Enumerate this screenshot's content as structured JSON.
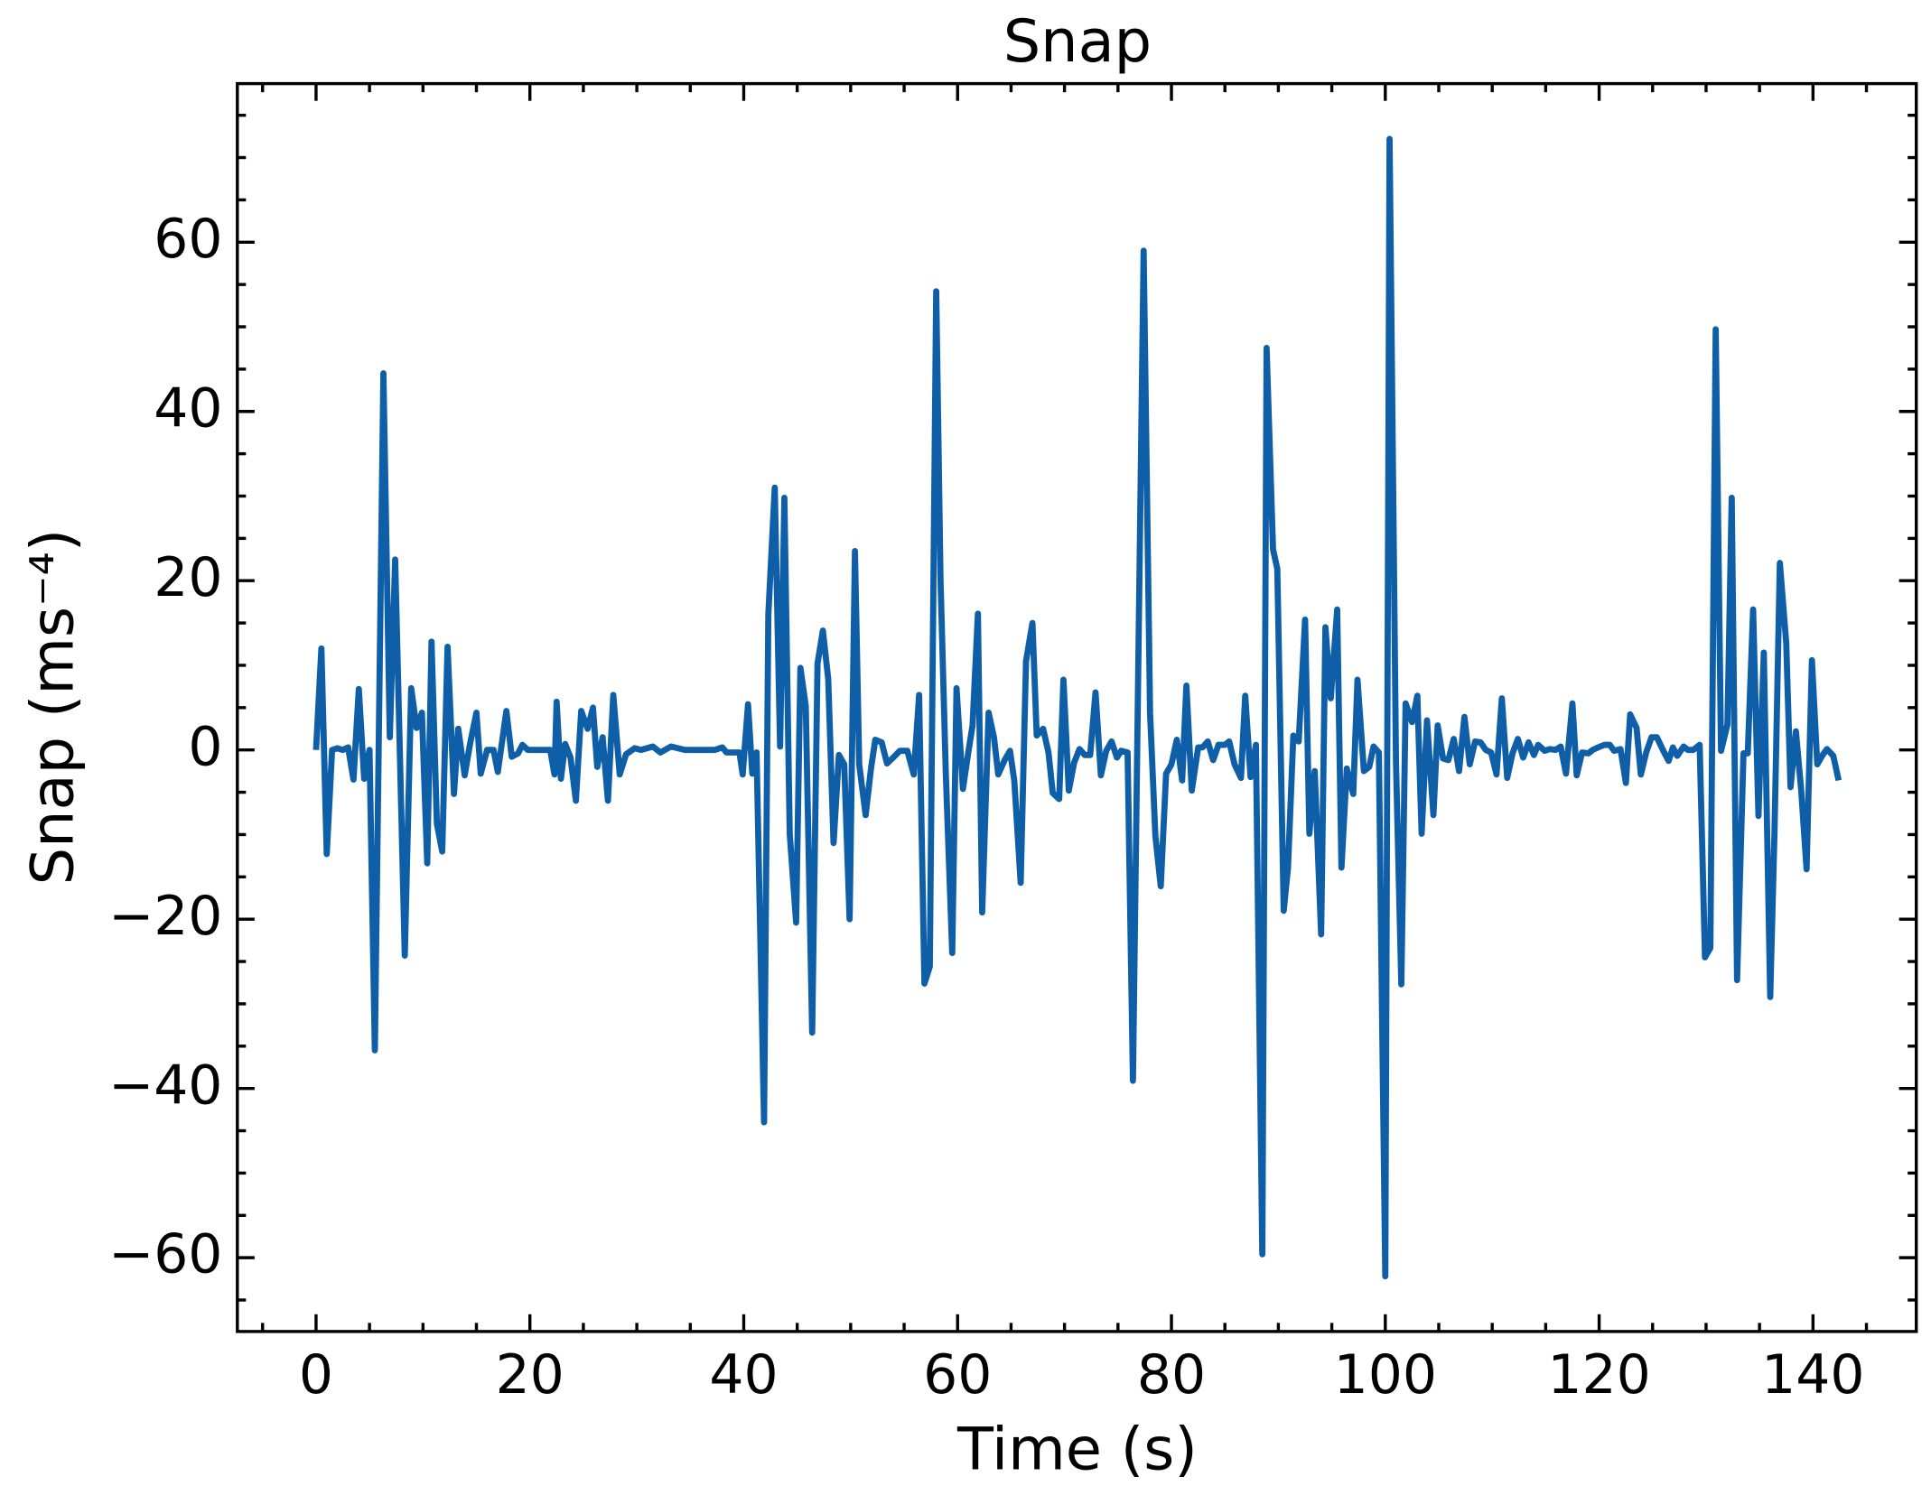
{
  "chart_data": {
    "type": "line",
    "title": "Snap",
    "x_label": "Time (s)",
    "y_label": "Snap (ms⁻⁴)",
    "color": "#0f5fa8",
    "x": [
      0,
      0.5,
      1,
      1.5,
      2,
      2.5,
      3,
      3.5,
      4,
      4.5,
      5,
      5.5,
      6.3,
      6.9,
      7.4,
      8.3,
      8.9,
      9.4,
      9.9,
      10.4,
      10.8,
      11.3,
      11.8,
      12.3,
      12.9,
      13.3,
      13.9,
      14.4,
      15,
      15.4,
      16,
      16.6,
      17,
      17.8,
      18.3,
      18.9,
      19.3,
      19.8,
      21.9,
      22.3,
      22.5,
      22.9,
      23.3,
      23.8,
      24.3,
      24.8,
      25.4,
      25.9,
      26.3,
      26.8,
      27.3,
      27.8,
      28.4,
      29,
      29.8,
      30.4,
      31.5,
      32.2,
      33.2,
      34.5,
      37.3,
      38,
      38.4,
      39.6,
      39.9,
      40.4,
      40.8,
      41.2,
      41.9,
      42.3,
      42.9,
      43.4,
      43.8,
      44.3,
      44.9,
      45.3,
      45.8,
      46.4,
      46.9,
      47.4,
      47.9,
      48.4,
      48.9,
      49.4,
      49.9,
      50.4,
      50.8,
      51.4,
      51.9,
      52.3,
      52.9,
      53.4,
      53.9,
      54.6,
      55.3,
      55.9,
      56.4,
      56.9,
      57.4,
      58,
      58.4,
      58.9,
      59.5,
      59.9,
      60.5,
      61,
      61.4,
      61.9,
      62.3,
      62.9,
      63.4,
      63.8,
      64.4,
      64.9,
      65.3,
      65.9,
      66.4,
      67,
      67.4,
      68,
      68.5,
      68.9,
      69.5,
      69.9,
      70.4,
      70.9,
      71.4,
      71.9,
      72.4,
      72.9,
      73.4,
      73.9,
      74.4,
      74.9,
      75.3,
      75.9,
      76.4,
      77.4,
      78,
      78.5,
      79,
      79.5,
      80,
      80.5,
      81,
      81.4,
      81.9,
      82.5,
      82.9,
      83.4,
      83.9,
      84.4,
      85,
      85.4,
      85.9,
      86.5,
      86.9,
      87.4,
      87.9,
      88.5,
      88.9,
      89.5,
      89.9,
      90.5,
      90.9,
      91.4,
      91.9,
      92.5,
      92.9,
      93.4,
      94,
      94.4,
      94.9,
      95.5,
      95.9,
      96.4,
      97,
      97.4,
      98,
      98.5,
      98.9,
      99.4,
      100,
      100.4,
      101,
      101.5,
      101.9,
      102.5,
      103,
      103.4,
      103.9,
      104.5,
      104.9,
      105.4,
      105.9,
      106.4,
      106.9,
      107.4,
      107.9,
      108.4,
      108.9,
      109.4,
      109.9,
      110.4,
      110.9,
      111.4,
      111.9,
      112.4,
      112.9,
      113.4,
      113.9,
      114.3,
      114.9,
      115.4,
      115.9,
      116.4,
      116.9,
      117.5,
      117.9,
      118.4,
      119,
      119.4,
      119.9,
      120.5,
      121,
      121.4,
      122,
      122.5,
      122.9,
      123.5,
      123.9,
      124.4,
      124.9,
      125.4,
      126,
      126.5,
      126.9,
      127.3,
      127.9,
      128.3,
      128.8,
      129.4,
      129.9,
      130.4,
      130.9,
      131.4,
      132,
      132.4,
      132.9,
      133.5,
      133.9,
      134.4,
      134.9,
      135.4,
      136,
      136.4,
      136.9,
      137.5,
      137.9,
      138.4,
      138.9,
      139.4,
      139.9,
      140.4,
      140.9,
      141.3,
      141.9,
      142.4
    ],
    "values": [
      0,
      12,
      -12.3,
      0,
      0.2,
      0,
      0.3,
      -3.5,
      7.2,
      -3.4,
      0,
      -35.5,
      44.5,
      1.5,
      22.5,
      -24.3,
      7.3,
      2.6,
      4.4,
      -13.4,
      12.8,
      -8.7,
      -12,
      12.2,
      -5.2,
      2.5,
      -3,
      0.7,
      4.4,
      -2.8,
      0,
      0,
      -2.6,
      4.6,
      -0.8,
      -0.4,
      0.6,
      0,
      0,
      -2.9,
      5.7,
      -3.4,
      0.7,
      -0.9,
      -6,
      4.6,
      2.5,
      5,
      -2,
      1.5,
      -6,
      6.5,
      -2.9,
      -0.5,
      0.2,
      0,
      0.4,
      -0.3,
      0.4,
      0,
      0,
      0.3,
      -0.3,
      -0.3,
      -2.9,
      5.4,
      -2.8,
      -0.3,
      -44,
      16,
      31,
      0.4,
      29.8,
      -9.9,
      -20.4,
      9.7,
      5.2,
      -33.4,
      10.2,
      14.1,
      8.4,
      -11,
      -0.6,
      -1.7,
      -20,
      23.5,
      -1.7,
      -7.7,
      -2.2,
      1.2,
      0.9,
      -1.6,
      -1,
      -0.1,
      -0.1,
      -2.9,
      6.5,
      -27.6,
      -25.6,
      54.2,
      20.3,
      -2.9,
      -24,
      7.3,
      -4.6,
      -0.3,
      2.9,
      16.1,
      -19.2,
      4.4,
      1.5,
      -2.9,
      -1.2,
      -0.1,
      -3.6,
      -15.7,
      10.5,
      15,
      1.7,
      2.5,
      -0.3,
      -5.1,
      -5.8,
      8.3,
      -4.8,
      -1.5,
      0.1,
      -0.6,
      -0.6,
      6.8,
      -3,
      -0.1,
      1,
      -0.9,
      -0.1,
      -0.3,
      -39.1,
      59,
      4.4,
      -10.2,
      -16.1,
      -2.8,
      -1.7,
      1.2,
      -3.6,
      7.6,
      -4.8,
      0.3,
      0.3,
      1,
      -1.2,
      0.6,
      0.6,
      1,
      -1.7,
      -3.3,
      6.4,
      -3.2,
      0.6,
      -59.6,
      47.5,
      23.7,
      21.4,
      -19,
      -13.9,
      1.7,
      1,
      15.4,
      -9.9,
      -2.5,
      -21.8,
      14.5,
      6.1,
      16.6,
      -13.9,
      -2.2,
      -5.2,
      8.3,
      -2.5,
      -2,
      0.4,
      -0.3,
      -62.2,
      72.2,
      -1.5,
      -27.7,
      5.5,
      3.3,
      6.4,
      -9.9,
      3.5,
      -7.7,
      2.9,
      -1,
      -1.2,
      1.3,
      -2.5,
      3.9,
      -1.7,
      1,
      0.9,
      0,
      -0.3,
      -2.9,
      6.1,
      -3.3,
      -0.4,
      1.3,
      -0.9,
      0.9,
      -0.6,
      0.6,
      -0.1,
      0.1,
      0,
      0.4,
      -2.8,
      5.5,
      -3,
      -0.3,
      -0.4,
      0,
      0.3,
      0.6,
      0.6,
      -0.1,
      0.1,
      -3.9,
      4.2,
      2.6,
      -2.9,
      -0.3,
      1.5,
      1.5,
      -0.1,
      -1.3,
      0.3,
      -0.7,
      0.4,
      0,
      0,
      0.6,
      -24.5,
      -23.4,
      49.7,
      -0.1,
      3,
      29.8,
      -27.2,
      -0.4,
      -0.4,
      16.6,
      -7.8,
      11.5,
      -29.2,
      -9.7,
      22.1,
      12.6,
      -4.4,
      2.2,
      -4.8,
      -14.1,
      10.6,
      -1.7,
      -0.6,
      0.1,
      -0.7,
      -3.6
    ],
    "xlim": [
      -7.36,
      149.66
    ],
    "ylim": [
      -68.72,
      78.74
    ],
    "xticks": [
      0,
      20,
      40,
      60,
      80,
      100,
      120,
      140
    ],
    "yticks": [
      {
        "value": -60,
        "label": "−60"
      },
      {
        "value": -40,
        "label": "−40"
      },
      {
        "value": -20,
        "label": "−20"
      },
      0,
      20,
      40,
      60
    ],
    "xminorticks": [
      -5,
      5,
      10,
      15,
      25,
      30,
      35,
      45,
      50,
      55,
      65,
      70,
      75,
      85,
      90,
      95,
      105,
      110,
      115,
      125,
      130,
      135,
      145
    ],
    "yminorticks": [
      -65,
      -55,
      -50,
      -45,
      -35,
      -30,
      -25,
      -15,
      -10,
      -5,
      5,
      10,
      15,
      25,
      30,
      35,
      45,
      50,
      55,
      65,
      70,
      75
    ]
  }
}
